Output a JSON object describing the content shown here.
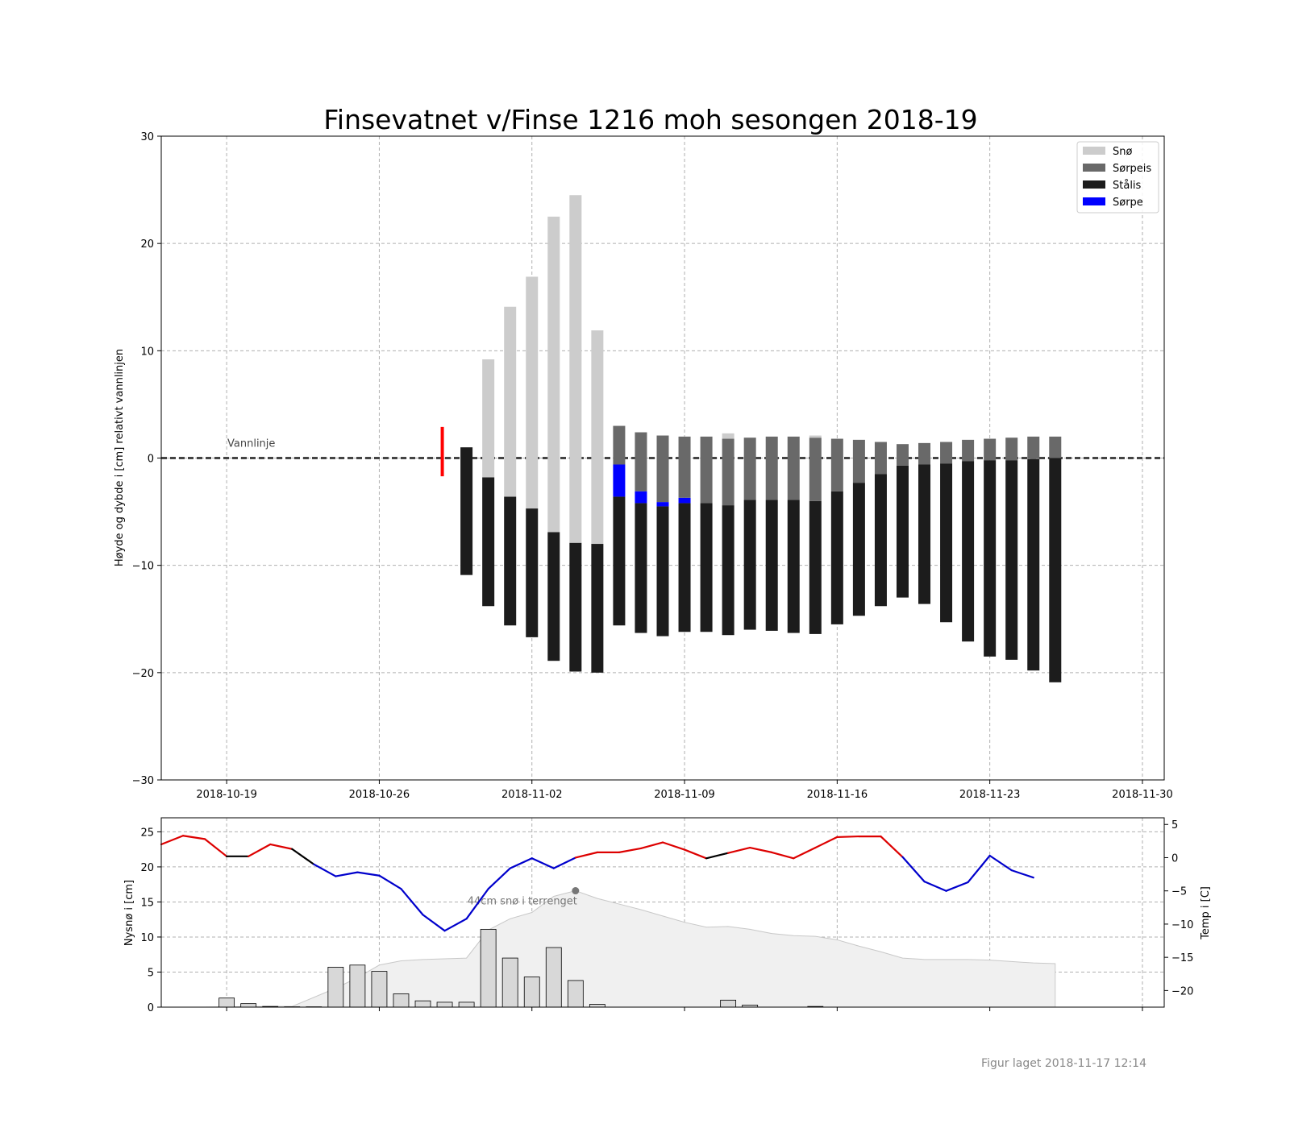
{
  "title": "Finsevatnet v/Finse 1216 moh sesongen 2018-19",
  "footer": "Figur laget 2018-11-17 12:14",
  "colors": {
    "snow": "#cccccc",
    "slush_ice": "#696969",
    "steel_ice": "#1c1c1c",
    "slush": "#0000ff",
    "temp_warm": "#dd0000",
    "temp_mid": "#000000",
    "temp_cold": "#0000cc",
    "water_line_marker": "#ff0000",
    "terrain_fill": "#f0f0f0",
    "newsnow_bar": "#d8d8d8"
  },
  "chart_data": [
    {
      "type": "bar",
      "title": "Finsevatnet v/Finse 1216 moh sesongen 2018-19",
      "ylabel": "Høyde og dybde i [cm] relativt vannlinjen",
      "ylim": [
        -30,
        30
      ],
      "yticks": [
        "30",
        "20",
        "10",
        "0",
        "−10",
        "−20",
        "−30"
      ],
      "xlim": [
        "2018-10-16",
        "2018-12-01"
      ],
      "xticks": [
        "2018-10-19",
        "2018-10-26",
        "2018-11-02",
        "2018-11-09",
        "2018-11-16",
        "2018-11-23",
        "2018-11-30"
      ],
      "grid": true,
      "legend": {
        "placement": "top-right",
        "entries": [
          "Snø",
          "Sørpeis",
          "Stålis",
          "Sørpe"
        ]
      },
      "annotation": "Vannlinje",
      "water_line_marker": {
        "date": "2018-10-29",
        "range": [
          -1.7,
          2.9
        ]
      },
      "stacks": [
        {
          "date": "2018-10-30",
          "steel": [
            -10.9,
            1.0
          ],
          "slushice": null,
          "slush": null,
          "snow": null
        },
        {
          "date": "2018-10-31",
          "steel": [
            -13.8,
            -1.8
          ],
          "slushice": null,
          "slush": null,
          "snow": [
            -1.8,
            9.2
          ]
        },
        {
          "date": "2018-11-01",
          "steel": [
            -15.6,
            -3.6
          ],
          "slushice": null,
          "slush": null,
          "snow": [
            -3.6,
            14.1
          ]
        },
        {
          "date": "2018-11-02",
          "steel": [
            -16.7,
            -4.7
          ],
          "slushice": null,
          "slush": null,
          "snow": [
            -4.7,
            16.9
          ]
        },
        {
          "date": "2018-11-03",
          "steel": [
            -18.9,
            -6.9
          ],
          "slushice": null,
          "slush": null,
          "snow": [
            -6.9,
            22.5
          ]
        },
        {
          "date": "2018-11-04",
          "steel": [
            -19.9,
            -7.9
          ],
          "slushice": null,
          "slush": null,
          "snow": [
            -7.9,
            24.5
          ]
        },
        {
          "date": "2018-11-05",
          "steel": [
            -20.0,
            -8.0
          ],
          "slushice": null,
          "slush": null,
          "snow": [
            -8.0,
            11.9
          ]
        },
        {
          "date": "2018-11-06",
          "steel": [
            -15.6,
            -3.6
          ],
          "slush": [
            -3.6,
            -0.6
          ],
          "slushice": [
            -0.6,
            3.0
          ],
          "snow": null
        },
        {
          "date": "2018-11-07",
          "steel": [
            -16.3,
            -4.2
          ],
          "slush": [
            -4.2,
            -3.1
          ],
          "slushice": [
            -3.1,
            2.4
          ],
          "snow": null
        },
        {
          "date": "2018-11-08",
          "steel": [
            -16.6,
            -4.5
          ],
          "slush": [
            -4.5,
            -4.1
          ],
          "slushice": [
            -4.1,
            2.1
          ],
          "snow": null
        },
        {
          "date": "2018-11-09",
          "steel": [
            -16.2,
            -4.2
          ],
          "slush": [
            -4.2,
            -3.7
          ],
          "slushice": [
            -3.7,
            2.0
          ],
          "snow": null
        },
        {
          "date": "2018-11-10",
          "steel": [
            -16.2,
            -4.2
          ],
          "slushice": [
            -4.2,
            2.0
          ],
          "slush": null,
          "snow": null
        },
        {
          "date": "2018-11-11",
          "steel": [
            -16.5,
            -4.4
          ],
          "slushice": [
            -4.4,
            1.8
          ],
          "slush": null,
          "snow": [
            1.8,
            2.3
          ]
        },
        {
          "date": "2018-11-12",
          "steel": [
            -16.0,
            -3.9
          ],
          "slushice": [
            -3.9,
            1.9
          ],
          "slush": null,
          "snow": null
        },
        {
          "date": "2018-11-13",
          "steel": [
            -16.1,
            -3.9
          ],
          "slushice": [
            -3.9,
            2.0
          ],
          "slush": null,
          "snow": null
        },
        {
          "date": "2018-11-14",
          "steel": [
            -16.3,
            -3.9
          ],
          "slushice": [
            -3.9,
            2.0
          ],
          "slush": null,
          "snow": null
        },
        {
          "date": "2018-11-15",
          "steel": [
            -16.4,
            -4.0
          ],
          "slushice": [
            -4.0,
            1.9
          ],
          "slush": null,
          "snow": [
            1.9,
            2.1
          ]
        },
        {
          "date": "2018-11-16",
          "steel": [
            -15.5,
            -3.1
          ],
          "slushice": [
            -3.1,
            1.8
          ],
          "slush": null,
          "snow": null
        },
        {
          "date": "2018-11-17",
          "steel": [
            -14.7,
            -2.3
          ],
          "slushice": [
            -2.3,
            1.7
          ],
          "slush": null,
          "snow": null
        },
        {
          "date": "2018-11-18",
          "steel": [
            -13.8,
            -1.5
          ],
          "slushice": [
            -1.5,
            1.5
          ],
          "slush": null,
          "snow": null
        },
        {
          "date": "2018-11-19",
          "steel": [
            -13.0,
            -0.7
          ],
          "slushice": [
            -0.7,
            1.3
          ],
          "slush": null,
          "snow": null
        },
        {
          "date": "2018-11-20",
          "steel": [
            -13.6,
            -0.6
          ],
          "slushice": [
            -0.6,
            1.4
          ],
          "slush": null,
          "snow": null
        },
        {
          "date": "2018-11-21",
          "steel": [
            -15.3,
            -0.5
          ],
          "slushice": [
            -0.5,
            1.5
          ],
          "slush": null,
          "snow": null
        },
        {
          "date": "2018-11-22",
          "steel": [
            -17.1,
            -0.3
          ],
          "slushice": [
            -0.3,
            1.7
          ],
          "slush": null,
          "snow": null
        },
        {
          "date": "2018-11-23",
          "steel": [
            -18.5,
            -0.2
          ],
          "slushice": [
            -0.2,
            1.8
          ],
          "slush": null,
          "snow": null
        },
        {
          "date": "2018-11-24",
          "steel": [
            -18.8,
            -0.2
          ],
          "slushice": [
            -0.2,
            1.9
          ],
          "slush": null,
          "snow": null
        },
        {
          "date": "2018-11-25",
          "steel": [
            -19.8,
            -0.1
          ],
          "slushice": [
            -0.1,
            2.0
          ],
          "slush": null,
          "snow": null
        },
        {
          "date": "2018-11-26",
          "steel": [
            -20.9,
            0.0
          ],
          "slushice": [
            0.0,
            2.0
          ],
          "slush": null,
          "snow": null
        }
      ]
    },
    {
      "type": "bar",
      "ylabel": "Nysnø i [cm]",
      "y2label": "Temp i [C]",
      "ylim": [
        0,
        27
      ],
      "y2lim": [
        -22.5,
        6
      ],
      "yticks": [
        0,
        5,
        10,
        15,
        20,
        25
      ],
      "y2ticks": [
        "5",
        "0",
        "−5",
        "−10",
        "−15",
        "−20"
      ],
      "grid": true,
      "annotation": "44cm snø i terrenget",
      "annotation_point": {
        "date": "2018-11-04",
        "value": 16.6
      },
      "new_snow": [
        {
          "date": "2018-10-19",
          "value": 1.3
        },
        {
          "date": "2018-10-20",
          "value": 0.5
        },
        {
          "date": "2018-10-21",
          "value": 0.1
        },
        {
          "date": "2018-10-22",
          "value": 0.05
        },
        {
          "date": "2018-10-23",
          "value": 0.05
        },
        {
          "date": "2018-10-24",
          "value": 5.7
        },
        {
          "date": "2018-10-25",
          "value": 6.0
        },
        {
          "date": "2018-10-26",
          "value": 5.1
        },
        {
          "date": "2018-10-27",
          "value": 1.9
        },
        {
          "date": "2018-10-28",
          "value": 0.9
        },
        {
          "date": "2018-10-29",
          "value": 0.7
        },
        {
          "date": "2018-10-30",
          "value": 0.7
        },
        {
          "date": "2018-10-31",
          "value": 11.1
        },
        {
          "date": "2018-11-01",
          "value": 7.0
        },
        {
          "date": "2018-11-02",
          "value": 4.3
        },
        {
          "date": "2018-11-03",
          "value": 8.5
        },
        {
          "date": "2018-11-04",
          "value": 3.8
        },
        {
          "date": "2018-11-05",
          "value": 0.4
        },
        {
          "date": "2018-11-11",
          "value": 1.0
        },
        {
          "date": "2018-11-12",
          "value": 0.3
        },
        {
          "date": "2018-11-15",
          "value": 0.1
        }
      ],
      "terrain_snow": [
        {
          "date": "2018-10-18",
          "value": 0
        },
        {
          "date": "2018-10-21",
          "value": 0.1
        },
        {
          "date": "2018-10-22",
          "value": 0.1
        },
        {
          "date": "2018-10-24",
          "value": 2.7
        },
        {
          "date": "2018-10-25",
          "value": 4.2
        },
        {
          "date": "2018-10-26",
          "value": 6.0
        },
        {
          "date": "2018-10-27",
          "value": 6.6
        },
        {
          "date": "2018-10-28",
          "value": 6.8
        },
        {
          "date": "2018-10-29",
          "value": 6.9
        },
        {
          "date": "2018-10-30",
          "value": 7.0
        },
        {
          "date": "2018-10-31",
          "value": 11.0
        },
        {
          "date": "2018-11-01",
          "value": 12.6
        },
        {
          "date": "2018-11-02",
          "value": 13.5
        },
        {
          "date": "2018-11-03",
          "value": 15.8
        },
        {
          "date": "2018-11-04",
          "value": 16.6
        },
        {
          "date": "2018-11-05",
          "value": 15.5
        },
        {
          "date": "2018-11-06",
          "value": 14.7
        },
        {
          "date": "2018-11-07",
          "value": 13.9
        },
        {
          "date": "2018-11-08",
          "value": 13.0
        },
        {
          "date": "2018-11-09",
          "value": 12.1
        },
        {
          "date": "2018-11-10",
          "value": 11.4
        },
        {
          "date": "2018-11-11",
          "value": 11.5
        },
        {
          "date": "2018-11-12",
          "value": 11.1
        },
        {
          "date": "2018-11-13",
          "value": 10.5
        },
        {
          "date": "2018-11-14",
          "value": 10.2
        },
        {
          "date": "2018-11-15",
          "value": 10.1
        },
        {
          "date": "2018-11-16",
          "value": 9.6
        },
        {
          "date": "2018-11-17",
          "value": 8.7
        },
        {
          "date": "2018-11-18",
          "value": 7.9
        },
        {
          "date": "2018-11-19",
          "value": 7.0
        },
        {
          "date": "2018-11-20",
          "value": 6.8
        },
        {
          "date": "2018-11-21",
          "value": 6.8
        },
        {
          "date": "2018-11-22",
          "value": 6.8
        },
        {
          "date": "2018-11-23",
          "value": 6.7
        },
        {
          "date": "2018-11-24",
          "value": 6.5
        },
        {
          "date": "2018-11-25",
          "value": 6.3
        },
        {
          "date": "2018-11-26",
          "value": 6.2
        }
      ],
      "temperature": [
        {
          "date": "2018-10-16",
          "value": 2.0
        },
        {
          "date": "2018-10-17",
          "value": 3.3
        },
        {
          "date": "2018-10-18",
          "value": 2.8
        },
        {
          "date": "2018-10-19",
          "value": 0.2
        },
        {
          "date": "2018-10-20",
          "value": 0.2
        },
        {
          "date": "2018-10-21",
          "value": 2.0
        },
        {
          "date": "2018-10-22",
          "value": 1.3
        },
        {
          "date": "2018-10-23",
          "value": -1.0
        },
        {
          "date": "2018-10-24",
          "value": -2.8
        },
        {
          "date": "2018-10-25",
          "value": -2.2
        },
        {
          "date": "2018-10-26",
          "value": -2.7
        },
        {
          "date": "2018-10-27",
          "value": -4.7
        },
        {
          "date": "2018-10-28",
          "value": -8.6
        },
        {
          "date": "2018-10-29",
          "value": -11.0
        },
        {
          "date": "2018-10-30",
          "value": -9.2
        },
        {
          "date": "2018-10-31",
          "value": -4.7
        },
        {
          "date": "2018-11-01",
          "value": -1.6
        },
        {
          "date": "2018-11-02",
          "value": -0.1
        },
        {
          "date": "2018-11-03",
          "value": -1.6
        },
        {
          "date": "2018-11-04",
          "value": 0.0
        },
        {
          "date": "2018-11-05",
          "value": 0.8
        },
        {
          "date": "2018-11-06",
          "value": 0.8
        },
        {
          "date": "2018-11-07",
          "value": 1.4
        },
        {
          "date": "2018-11-08",
          "value": 2.3
        },
        {
          "date": "2018-11-09",
          "value": 1.2
        },
        {
          "date": "2018-11-10",
          "value": -0.1
        },
        {
          "date": "2018-11-11",
          "value": 0.7
        },
        {
          "date": "2018-11-12",
          "value": 1.5
        },
        {
          "date": "2018-11-13",
          "value": 0.8
        },
        {
          "date": "2018-11-14",
          "value": -0.1
        },
        {
          "date": "2018-11-15",
          "value": 1.5
        },
        {
          "date": "2018-11-16",
          "value": 3.1
        },
        {
          "date": "2018-11-17",
          "value": 3.2
        },
        {
          "date": "2018-11-18",
          "value": 3.2
        },
        {
          "date": "2018-11-19",
          "value": 0.1
        },
        {
          "date": "2018-11-20",
          "value": -3.6
        },
        {
          "date": "2018-11-21",
          "value": -5.0
        },
        {
          "date": "2018-11-22",
          "value": -3.7
        },
        {
          "date": "2018-11-23",
          "value": 0.3
        },
        {
          "date": "2018-11-24",
          "value": -1.9
        },
        {
          "date": "2018-11-25",
          "value": -3.0
        }
      ]
    }
  ]
}
